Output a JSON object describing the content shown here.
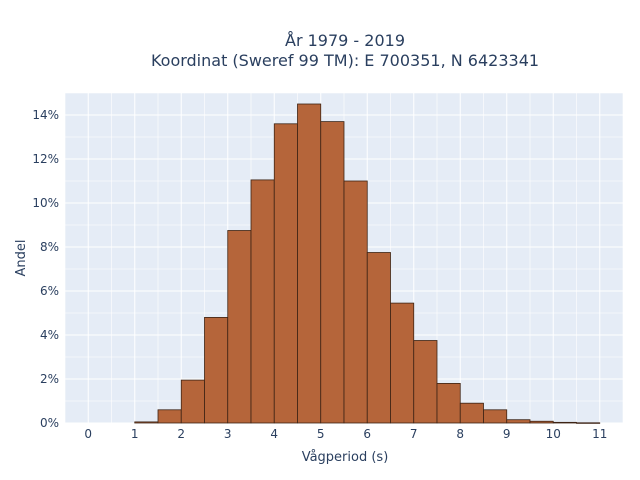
{
  "chart_data": {
    "type": "bar",
    "title": "År 1979 - 2019",
    "subtitle": "Koordinat (Sweref 99 TM): E 700351, N 6423341",
    "xlabel": "Vågperiod (s)",
    "ylabel": "Andel",
    "xlim": [
      -0.5,
      11.5
    ],
    "ylim": [
      0,
      15
    ],
    "x_ticks": [
      0,
      1,
      2,
      3,
      4,
      5,
      6,
      7,
      8,
      9,
      10,
      11
    ],
    "y_ticks": [
      0,
      2,
      4,
      6,
      8,
      10,
      12,
      14
    ],
    "y_tick_suffix": "%",
    "grid": true,
    "bin_width": 0.5,
    "bin_starts": [
      1.0,
      1.5,
      2.0,
      2.5,
      3.0,
      3.5,
      4.0,
      4.5,
      5.0,
      5.5,
      6.0,
      6.5,
      7.0,
      7.5,
      8.0,
      8.5,
      9.0,
      9.5,
      10.0,
      10.5
    ],
    "values": [
      0.05,
      0.6,
      1.95,
      4.8,
      8.75,
      11.05,
      13.6,
      14.5,
      13.7,
      11.0,
      7.75,
      5.45,
      3.75,
      1.8,
      0.9,
      0.6,
      0.15,
      0.08,
      0.03,
      0.01
    ],
    "colors": {
      "bar_fill": "#b5653a",
      "bar_edge": "#3d2314",
      "plot_bg": "#e5ecf6",
      "grid": "#ffffff"
    }
  }
}
